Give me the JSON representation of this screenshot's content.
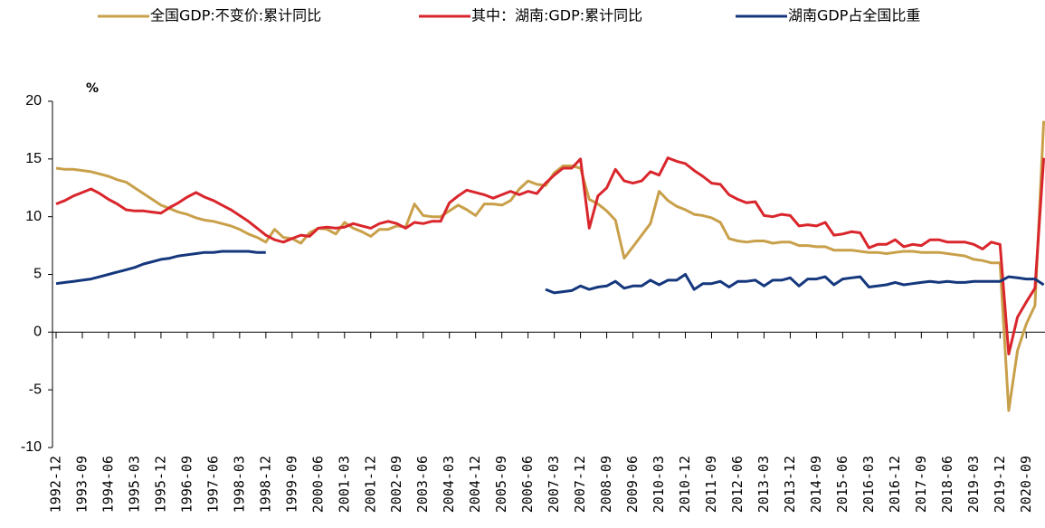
{
  "chart_data": {
    "type": "line",
    "ylabel": "%",
    "categories": [
      "1992-12",
      null,
      null,
      "1993-09",
      null,
      null,
      "1994-06",
      null,
      null,
      "1995-03",
      null,
      null,
      "1995-12",
      null,
      null,
      "1996-09",
      null,
      null,
      "1997-06",
      null,
      null,
      "1998-03",
      null,
      null,
      "1998-12",
      null,
      null,
      "1999-09",
      null,
      null,
      "2000-06",
      null,
      null,
      "2001-03",
      null,
      null,
      "2001-12",
      null,
      null,
      "2002-09",
      null,
      null,
      "2003-06",
      null,
      null,
      "2004-03",
      null,
      null,
      "2004-12",
      null,
      null,
      "2005-09",
      null,
      null,
      "2006-06",
      null,
      null,
      "2007-03",
      null,
      null,
      "2007-12",
      null,
      null,
      "2008-09",
      null,
      null,
      "2009-06",
      null,
      null,
      "2010-03",
      null,
      null,
      "2010-12",
      null,
      null,
      "2011-09",
      null,
      null,
      "2012-06",
      null,
      null,
      "2013-03",
      null,
      null,
      "2013-12",
      null,
      null,
      "2014-09",
      null,
      null,
      "2015-06",
      null,
      null,
      "2016-03",
      null,
      null,
      "2016-12",
      null,
      null,
      "2017-09",
      null,
      null,
      "2018-06",
      null,
      null,
      "2019-03",
      null,
      null,
      "2019-12",
      null,
      null,
      "2020-09",
      null,
      null
    ],
    "series": [
      {
        "name": "全国GDP:不变价:累计同比",
        "color": "#c9a04a",
        "values": [
          14.2,
          14.1,
          14.1,
          14.0,
          13.9,
          13.7,
          13.5,
          13.2,
          13.0,
          12.5,
          12.0,
          11.5,
          11.0,
          10.7,
          10.4,
          10.2,
          9.9,
          9.7,
          9.6,
          9.4,
          9.2,
          8.9,
          8.5,
          8.2,
          7.8,
          8.9,
          8.2,
          8.1,
          7.7,
          8.6,
          9.0,
          8.9,
          8.5,
          9.5,
          9.0,
          8.7,
          8.3,
          8.9,
          8.9,
          9.2,
          9.1,
          11.1,
          10.1,
          10.0,
          10.0,
          10.5,
          11.0,
          10.6,
          10.1,
          11.1,
          11.1,
          11.0,
          11.4,
          12.4,
          13.1,
          12.8,
          12.7,
          13.8,
          14.4,
          14.4,
          14.2,
          11.5,
          11.1,
          10.5,
          9.7,
          6.4,
          7.4,
          8.4,
          9.4,
          12.2,
          11.4,
          10.9,
          10.6,
          10.2,
          10.1,
          9.9,
          9.5,
          8.1,
          7.9,
          7.8,
          7.9,
          7.9,
          7.7,
          7.8,
          7.8,
          7.5,
          7.5,
          7.4,
          7.4,
          7.1,
          7.1,
          7.1,
          7.0,
          6.9,
          6.9,
          6.8,
          6.9,
          7.0,
          7.0,
          6.9,
          6.9,
          6.9,
          6.8,
          6.7,
          6.6,
          6.3,
          6.2,
          6.0,
          6.0,
          -6.8,
          -1.6,
          0.7,
          2.3,
          18.3
        ]
      },
      {
        "name": "其中：湖南:GDP:累计同比",
        "color": "#d9262c",
        "values": [
          11.1,
          11.4,
          11.8,
          12.1,
          12.4,
          12.0,
          11.5,
          11.1,
          10.6,
          10.5,
          10.5,
          10.4,
          10.3,
          10.8,
          11.2,
          11.7,
          12.1,
          11.7,
          11.4,
          11.0,
          10.6,
          10.1,
          9.6,
          9.0,
          8.4,
          8.0,
          7.8,
          8.1,
          8.4,
          8.3,
          9.0,
          9.1,
          9.0,
          9.1,
          9.4,
          9.2,
          9.0,
          9.4,
          9.6,
          9.4,
          9.0,
          9.5,
          9.4,
          9.6,
          9.6,
          11.2,
          11.8,
          12.3,
          12.1,
          11.9,
          11.6,
          11.9,
          12.2,
          11.9,
          12.2,
          12.0,
          12.9,
          13.6,
          14.2,
          14.2,
          15.0,
          9.0,
          11.8,
          12.5,
          14.1,
          13.1,
          12.9,
          13.1,
          13.9,
          13.6,
          15.1,
          14.8,
          14.6,
          14.0,
          13.5,
          12.9,
          12.8,
          11.9,
          11.5,
          11.2,
          11.3,
          10.1,
          10.0,
          10.2,
          10.1,
          9.2,
          9.3,
          9.2,
          9.5,
          8.4,
          8.5,
          8.7,
          8.6,
          7.3,
          7.6,
          7.6,
          8.0,
          7.4,
          7.6,
          7.5,
          8.0,
          8.0,
          7.8,
          7.8,
          7.8,
          7.6,
          7.2,
          7.8,
          7.6,
          -1.9,
          1.3,
          2.6,
          3.8,
          15.1
        ]
      },
      {
        "name": "湖南GDP占全国比重",
        "color": "#14377d",
        "values": [
          4.2,
          4.3,
          4.4,
          4.5,
          4.6,
          4.8,
          5.0,
          5.2,
          5.4,
          5.6,
          5.9,
          6.1,
          6.3,
          6.4,
          6.6,
          6.7,
          6.8,
          6.9,
          6.9,
          7.0,
          7.0,
          7.0,
          7.0,
          6.9,
          6.9,
          null,
          null,
          null,
          null,
          null,
          null,
          null,
          null,
          null,
          null,
          null,
          null,
          null,
          null,
          null,
          null,
          null,
          null,
          null,
          null,
          null,
          null,
          null,
          null,
          null,
          null,
          null,
          null,
          null,
          null,
          null,
          3.7,
          3.4,
          3.5,
          3.6,
          4.0,
          3.7,
          3.9,
          4.0,
          4.4,
          3.8,
          4.0,
          4.0,
          4.5,
          4.1,
          4.5,
          4.5,
          5.0,
          3.7,
          4.2,
          4.2,
          4.4,
          3.9,
          4.4,
          4.4,
          4.5,
          4.0,
          4.5,
          4.5,
          4.7,
          4.0,
          4.6,
          4.6,
          4.8,
          4.1,
          4.6,
          4.7,
          4.8,
          3.9,
          4.0,
          4.1,
          4.3,
          4.1,
          4.2,
          4.3,
          4.4,
          4.3,
          4.4,
          4.3,
          4.3,
          4.4,
          4.4,
          4.4,
          4.4,
          4.8,
          4.7,
          4.6,
          4.6,
          4.1
        ]
      }
    ],
    "ylim": [
      -10,
      20
    ],
    "yticks": [
      -10,
      -5,
      0,
      5,
      10,
      15,
      20
    ],
    "grid": false,
    "legend": "top"
  }
}
